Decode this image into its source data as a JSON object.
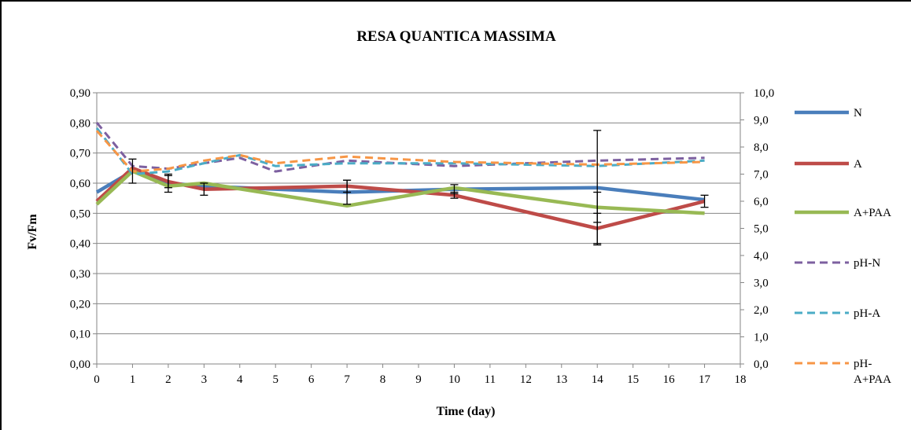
{
  "chart_data": {
    "type": "line",
    "title": "RESA QUANTICA MASSIMA",
    "xlabel": "Time (day)",
    "ylabel": "Fv/Fm",
    "y2label": "",
    "xlim": [
      0,
      18
    ],
    "ylim": [
      0,
      0.9
    ],
    "y2lim": [
      0,
      10
    ],
    "x_ticks": [
      "0",
      "1",
      "2",
      "3",
      "4",
      "5",
      "6",
      "7",
      "8",
      "9",
      "10",
      "11",
      "12",
      "13",
      "14",
      "15",
      "16",
      "17",
      "18"
    ],
    "y_ticks": [
      "0,00",
      "0,10",
      "0,20",
      "0,30",
      "0,40",
      "0,50",
      "0,60",
      "0,70",
      "0,80",
      "0,90"
    ],
    "y2_ticks": [
      "0,0",
      "1,0",
      "2,0",
      "3,0",
      "4,0",
      "5,0",
      "6,0",
      "7,0",
      "8,0",
      "9,0",
      "10,0"
    ],
    "grid": true,
    "legend_position": "right",
    "series": [
      {
        "name": "N",
        "axis": "left",
        "style": "solid",
        "color": "#4A7EBB",
        "x": [
          0,
          1,
          2,
          3,
          7,
          10,
          14,
          17
        ],
        "y": [
          0.57,
          0.64,
          0.6,
          0.59,
          0.57,
          0.58,
          0.585,
          0.545
        ],
        "err": [
          0,
          0.04,
          0.03,
          0,
          0.04,
          0.015,
          0.19,
          0
        ]
      },
      {
        "name": "A",
        "axis": "left",
        "style": "solid",
        "color": "#BE4B48",
        "x": [
          0,
          1,
          2,
          3,
          7,
          10,
          14,
          17
        ],
        "y": [
          0.54,
          0.65,
          0.605,
          0.58,
          0.59,
          0.56,
          0.45,
          0.54
        ],
        "err": [
          0,
          0,
          0.02,
          0.02,
          0.02,
          0.01,
          0.05,
          0.02
        ]
      },
      {
        "name": "A+PAA",
        "axis": "left",
        "style": "solid",
        "color": "#98B954",
        "x": [
          0,
          1,
          2,
          3,
          7,
          10,
          14,
          17
        ],
        "y": [
          0.53,
          0.64,
          0.59,
          0.6,
          0.525,
          0.585,
          0.52,
          0.5
        ],
        "err": [
          0,
          0,
          0,
          0,
          0,
          0,
          0.05,
          0
        ]
      },
      {
        "name": "pH-N",
        "axis": "right",
        "style": "dashed",
        "color": "#7D60A0",
        "x": [
          0,
          1,
          2,
          3,
          4,
          5,
          7,
          10,
          14,
          17
        ],
        "y": [
          8.9,
          7.3,
          7.2,
          7.4,
          7.6,
          7.1,
          7.5,
          7.3,
          7.5,
          7.6
        ]
      },
      {
        "name": "pH-A",
        "axis": "right",
        "style": "dashed",
        "color": "#4BACC6",
        "x": [
          0,
          1,
          2,
          3,
          4,
          5,
          7,
          10,
          14,
          17
        ],
        "y": [
          8.7,
          7.0,
          7.1,
          7.4,
          7.7,
          7.3,
          7.4,
          7.4,
          7.3,
          7.5
        ]
      },
      {
        "name": "pH-A+PAA",
        "axis": "right",
        "style": "dashed",
        "color": "#F79646",
        "x": [
          0,
          1,
          2,
          3,
          4,
          5,
          7,
          10,
          14,
          17
        ],
        "y": [
          8.6,
          7.1,
          7.2,
          7.5,
          7.7,
          7.4,
          7.65,
          7.45,
          7.35,
          7.45
        ]
      }
    ],
    "legend_labels": [
      {
        "lines": [
          "N"
        ]
      },
      {
        "lines": [
          "A"
        ]
      },
      {
        "lines": [
          "A+PAA"
        ]
      },
      {
        "lines": [
          "pH-N"
        ]
      },
      {
        "lines": [
          "pH-A"
        ]
      },
      {
        "lines": [
          "pH-",
          "A+PAA"
        ]
      }
    ]
  }
}
